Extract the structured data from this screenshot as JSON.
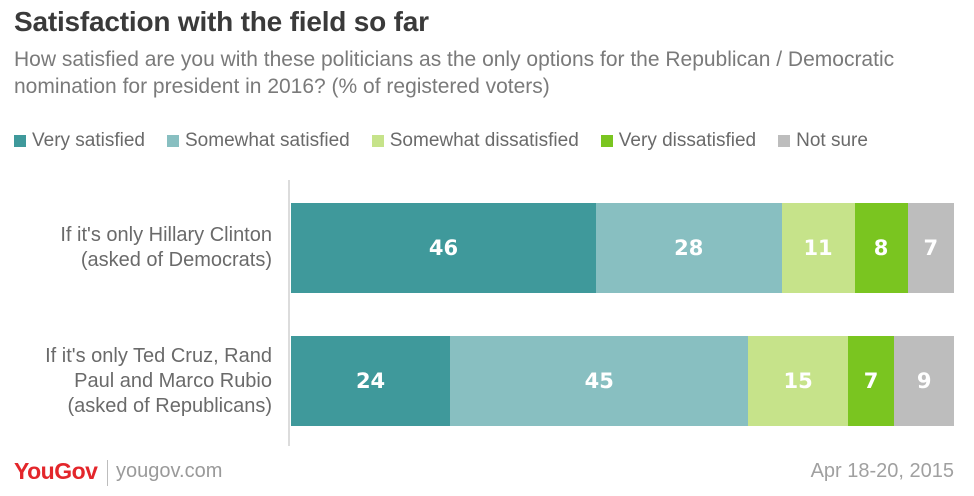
{
  "title": "Satisfaction with the field so far",
  "subtitle": "How satisfied are you with these politicians as the only options for the Republican / Democratic nomination for president in 2016? (% of registered voters)",
  "footer": {
    "logo": "YouGov",
    "url": "yougov.com",
    "date": "Apr 18-20, 2015"
  },
  "colors": {
    "very_satisfied": "#3f999b",
    "somewhat_satisfied": "#88bfc1",
    "somewhat_dissatisfied": "#c6e38a",
    "very_dissatisfied": "#7ac520",
    "not_sure": "#bdbdbd"
  },
  "chart_data": {
    "type": "bar",
    "orientation": "horizontal",
    "stacked": true,
    "legend_position": "top",
    "categories": [
      [
        "If it's only Hillary Clinton",
        "(asked of Democrats)"
      ],
      [
        "If it's only Ted Cruz, Rand",
        "Paul and Marco Rubio",
        "(asked of Republicans)"
      ]
    ],
    "series": [
      {
        "name": "Very satisfied",
        "color": "#3f999b",
        "values": [
          46,
          24
        ]
      },
      {
        "name": "Somewhat satisfied",
        "color": "#88bfc1",
        "values": [
          28,
          45
        ]
      },
      {
        "name": "Somewhat dissatisfied",
        "color": "#c6e38a",
        "values": [
          11,
          15
        ]
      },
      {
        "name": "Very dissatisfied",
        "color": "#7ac520",
        "values": [
          8,
          7
        ]
      },
      {
        "name": "Not sure",
        "color": "#bdbdbd",
        "values": [
          7,
          9
        ]
      }
    ]
  }
}
